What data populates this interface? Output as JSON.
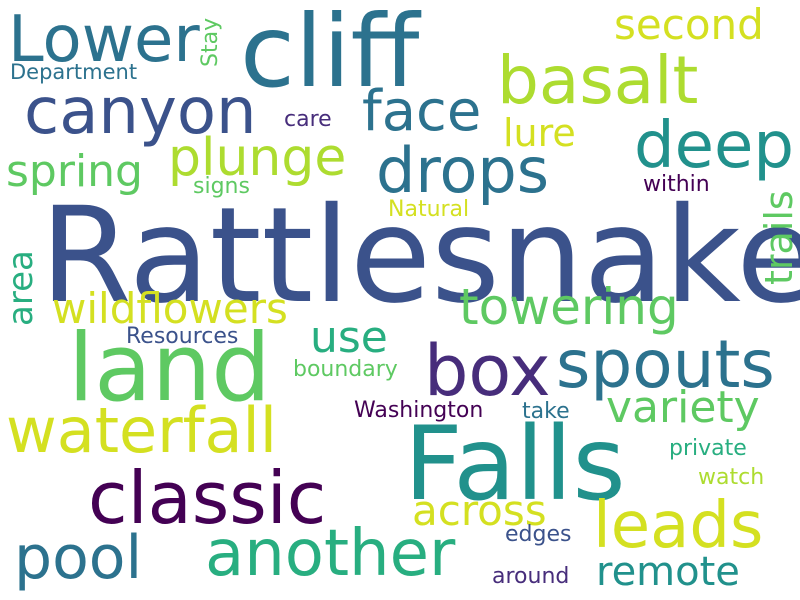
{
  "palette": {
    "dark_purple": "#440154",
    "indigo": "#472d7b",
    "blue_purple": "#3b528b",
    "steel_blue": "#2c728e",
    "teal": "#21918c",
    "sea_green": "#28ae80",
    "green": "#5ec962",
    "lime": "#addc30",
    "yellow": "#d4e021"
  },
  "words": [
    {
      "text": "Rattlesnake",
      "color": "#3b528b"
    },
    {
      "text": "cliff",
      "color": "#2c728e"
    },
    {
      "text": "Lower",
      "color": "#2c728e"
    },
    {
      "text": "land",
      "color": "#5ec962"
    },
    {
      "text": "Falls",
      "color": "#21918c"
    },
    {
      "text": "basalt",
      "color": "#addc30"
    },
    {
      "text": "canyon",
      "color": "#3b528b"
    },
    {
      "text": "second",
      "color": "#d4e021"
    },
    {
      "text": "Department",
      "color": "#2c728e"
    },
    {
      "text": "Stay",
      "color": "#5ec962"
    },
    {
      "text": "face",
      "color": "#2c728e"
    },
    {
      "text": "deep",
      "color": "#21918c"
    },
    {
      "text": "plunge",
      "color": "#addc30"
    },
    {
      "text": "spring",
      "color": "#5ec962"
    },
    {
      "text": "drops",
      "color": "#2c728e"
    },
    {
      "text": "lure",
      "color": "#d4e021"
    },
    {
      "text": "care",
      "color": "#472d7b"
    },
    {
      "text": "signs",
      "color": "#5ec962"
    },
    {
      "text": "Natural",
      "color": "#d4e021"
    },
    {
      "text": "within",
      "color": "#440154"
    },
    {
      "text": "trails",
      "color": "#5ec962"
    },
    {
      "text": "area",
      "color": "#28ae80"
    },
    {
      "text": "wildflowers",
      "color": "#d4e021"
    },
    {
      "text": "towering",
      "color": "#5ec962"
    },
    {
      "text": "use",
      "color": "#28ae80"
    },
    {
      "text": "Resources",
      "color": "#3b528b"
    },
    {
      "text": "box",
      "color": "#472d7b"
    },
    {
      "text": "spouts",
      "color": "#2c728e"
    },
    {
      "text": "boundary",
      "color": "#5ec962"
    },
    {
      "text": "waterfall",
      "color": "#d4e021"
    },
    {
      "text": "variety",
      "color": "#5ec962"
    },
    {
      "text": "Washington",
      "color": "#440154"
    },
    {
      "text": "take",
      "color": "#2c728e"
    },
    {
      "text": "private",
      "color": "#28ae80"
    },
    {
      "text": "classic",
      "color": "#440154"
    },
    {
      "text": "watch",
      "color": "#addc30"
    },
    {
      "text": "across",
      "color": "#d4e021"
    },
    {
      "text": "leads",
      "color": "#d4e021"
    },
    {
      "text": "edges",
      "color": "#3b528b"
    },
    {
      "text": "pool",
      "color": "#2c728e"
    },
    {
      "text": "another",
      "color": "#28ae80"
    },
    {
      "text": "remote",
      "color": "#21918c"
    },
    {
      "text": "around",
      "color": "#472d7b"
    }
  ]
}
